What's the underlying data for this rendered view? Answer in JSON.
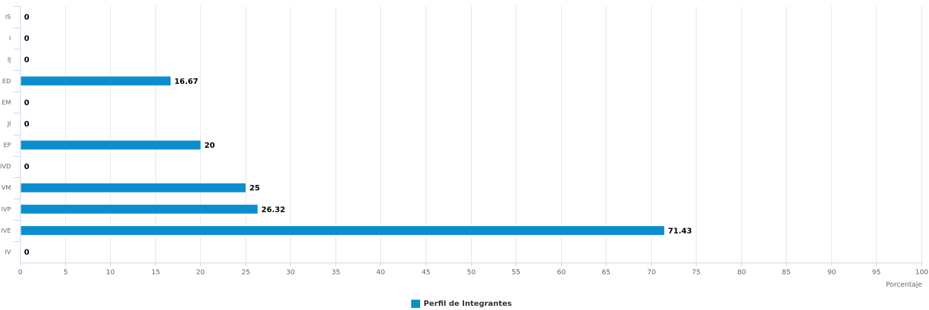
{
  "chart_data": {
    "type": "bar",
    "orientation": "horizontal",
    "categories": [
      "IS",
      "I",
      "IJ",
      "ED",
      "EM",
      "JI",
      "EP",
      "IVD",
      "VM",
      "IVP",
      "IVE",
      "IV"
    ],
    "series": [
      {
        "name": "Perfil de Integrantes",
        "values": [
          0,
          0,
          0,
          16.67,
          0,
          0,
          20,
          0,
          25,
          26.32,
          71.43,
          0
        ],
        "labels": [
          "0",
          "0",
          "0",
          "16.67",
          "0",
          "0",
          "20",
          "0",
          "25",
          "26.32",
          "71.43",
          "0"
        ],
        "color": "#0b8ecf"
      }
    ],
    "xlabel": "Porcentaje",
    "xlim": [
      0,
      100
    ],
    "xticks": [
      "0",
      "5",
      "10",
      "15",
      "20",
      "25",
      "30",
      "35",
      "40",
      "45",
      "50",
      "55",
      "60",
      "65",
      "70",
      "75",
      "80",
      "85",
      "90",
      "95",
      "100"
    ],
    "grid": true,
    "legend_position": "bottom-center"
  },
  "legend": {
    "label": "Perfil de Integrantes",
    "color": "#0b8ecf"
  }
}
